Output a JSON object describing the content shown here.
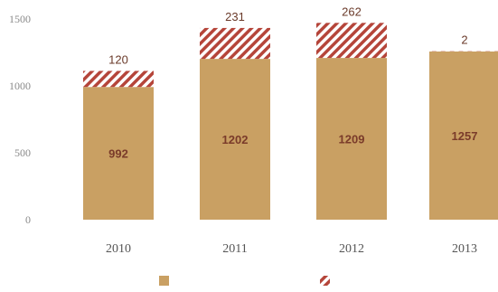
{
  "chart_data": {
    "type": "bar",
    "stacked": true,
    "categories": [
      "2010",
      "2011",
      "2012",
      "2013"
    ],
    "series": [
      {
        "values": [
          992,
          1202,
          1209,
          1257
        ],
        "color": "#c9a063",
        "pattern": "solid"
      },
      {
        "values": [
          120,
          231,
          262,
          2
        ],
        "color": "#b5453a",
        "pattern": "hatched"
      }
    ],
    "ylim": [
      0,
      1500
    ],
    "yticks": [
      {
        "value": 0,
        "label": "0"
      },
      {
        "value": 500,
        "label": "500"
      },
      {
        "value": 1000,
        "label": "1000"
      },
      {
        "value": 1500,
        "label": "1500"
      }
    ],
    "grid": false,
    "legend": "bottom"
  }
}
